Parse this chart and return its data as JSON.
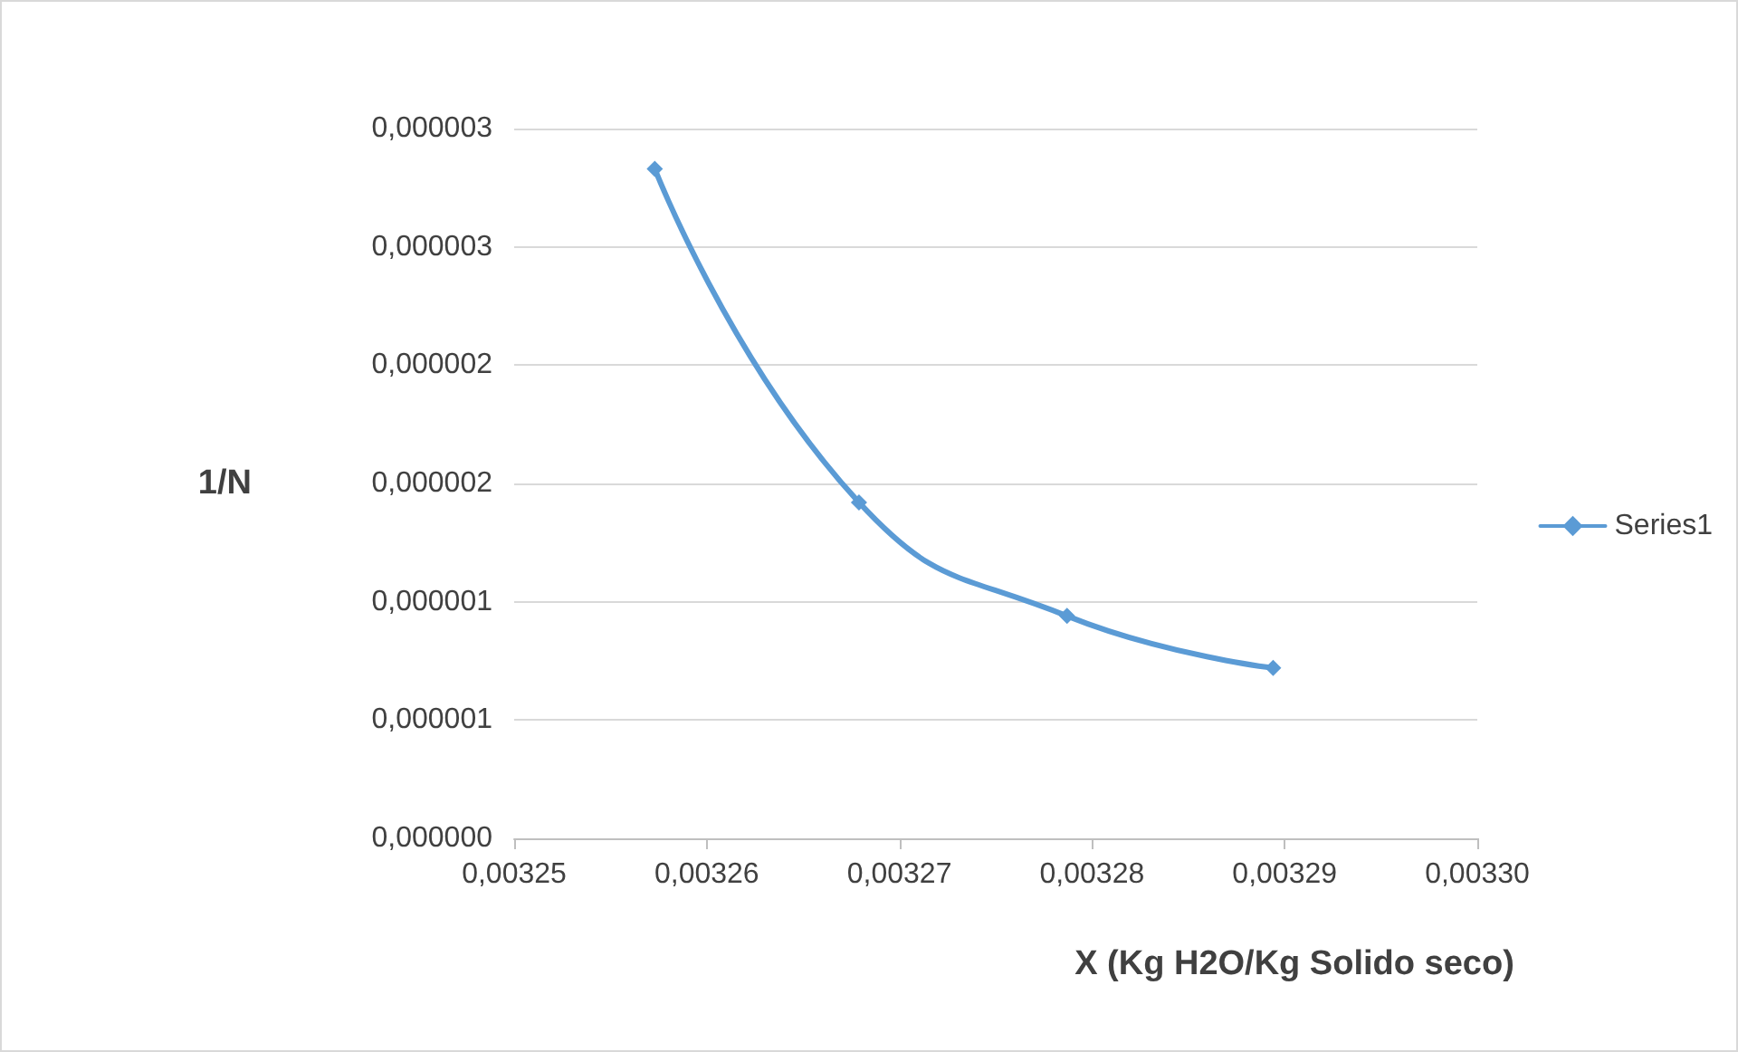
{
  "chart_data": {
    "type": "line",
    "xlabel": "X (Kg H2O/Kg Solido seco)",
    "ylabel": "1/N",
    "x": [
      0.0032573,
      0.0032679,
      0.0032787,
      0.0032894
    ],
    "series": [
      {
        "name": "Series1",
        "color": "#5b9bd5",
        "values": [
          2.83e-06,
          1.42e-06,
          9.4e-07,
          7.2e-07
        ]
      }
    ],
    "xlim": [
      0.00325,
      0.0033
    ],
    "xticks": [
      {
        "value": 0.00325,
        "label": "0,00325"
      },
      {
        "value": 0.00326,
        "label": "0,00326"
      },
      {
        "value": 0.00327,
        "label": "0,00327"
      },
      {
        "value": 0.00328,
        "label": "0,00328"
      },
      {
        "value": 0.00329,
        "label": "0,00329"
      },
      {
        "value": 0.0033,
        "label": "0,00330"
      }
    ],
    "ylim": [
      0,
      3e-06
    ],
    "yticks": [
      {
        "value": 0,
        "label": "0,000000"
      },
      {
        "value": 5e-07,
        "label": "0,000001"
      },
      {
        "value": 1e-06,
        "label": "0,000001"
      },
      {
        "value": 1.5e-06,
        "label": "0,000002"
      },
      {
        "value": 2e-06,
        "label": "0,000002"
      },
      {
        "value": 2.5e-06,
        "label": "0,000003"
      },
      {
        "value": 3e-06,
        "label": "0,000003"
      }
    ],
    "grid": "y",
    "legend": "right",
    "marker": "diamond",
    "line_style": "solid"
  }
}
